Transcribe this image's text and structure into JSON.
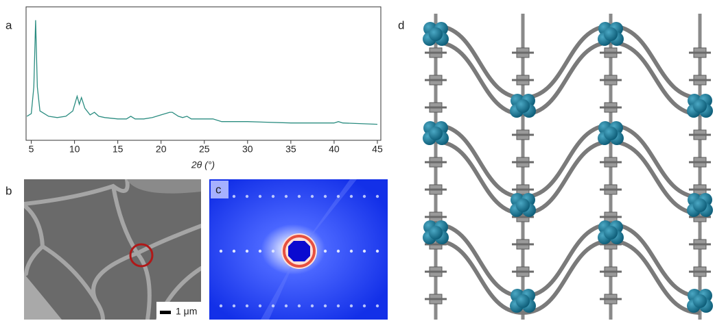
{
  "chart_data": {
    "type": "line",
    "xlabel": "2θ (°)",
    "x": [
      4.5,
      5.0,
      5.3,
      5.5,
      5.7,
      6.0,
      7,
      8,
      9,
      9.8,
      10.3,
      10.55,
      10.8,
      11.2,
      11.8,
      12.3,
      12.8,
      13.5,
      15,
      16,
      16.5,
      17,
      18,
      19,
      20,
      21,
      21.3,
      22,
      22.5,
      23,
      23.5,
      24,
      26,
      27,
      30,
      35,
      40,
      40.5,
      41,
      45
    ],
    "series": [
      {
        "color": "#2a8c80",
        "values": [
          18,
          20,
          40,
          90,
          40,
          22,
          18,
          17,
          18,
          22,
          33,
          27,
          32,
          24,
          19,
          21,
          18,
          17,
          16,
          16,
          18,
          16,
          16,
          17,
          19,
          21,
          21,
          18,
          17,
          18,
          16,
          16,
          16,
          14,
          14,
          13,
          13,
          14,
          13,
          12
        ]
      }
    ],
    "xlim": [
      4.4,
      45.4
    ],
    "ylim": [
      0,
      100
    ],
    "xticks": [
      5,
      10,
      15,
      20,
      25,
      30,
      35,
      40,
      45
    ]
  },
  "panels": [
    "a",
    "b",
    "c",
    "d"
  ],
  "scale_bar": "1 μm"
}
